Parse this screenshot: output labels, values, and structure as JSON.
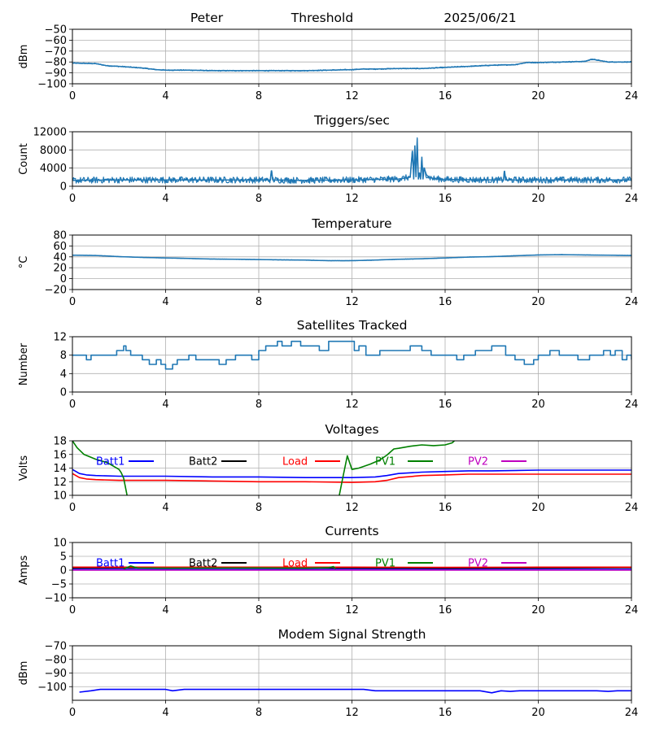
{
  "header": {
    "left": "Peter",
    "middle": "Threshold",
    "right": "2025/06/21"
  },
  "chart_data": [
    {
      "type": "line",
      "title": "",
      "ylabel": "dBm",
      "xlim": [
        0,
        24
      ],
      "ylim": [
        -100,
        -50
      ],
      "xticks": [
        0,
        4,
        8,
        12,
        16,
        20,
        24
      ],
      "yticks": [
        -100,
        -90,
        -80,
        -70,
        -60,
        -50
      ],
      "grid": true,
      "series": [
        {
          "color": "#1f77b4",
          "noise": 0.5,
          "x": [
            0,
            1,
            1.5,
            2,
            3,
            3.6,
            4,
            5,
            6,
            8,
            10,
            11,
            12,
            12.5,
            13,
            14,
            15,
            16,
            17,
            18,
            19,
            19.5,
            20,
            21,
            22,
            22.3,
            23,
            24
          ],
          "y": [
            -81,
            -81.5,
            -83.5,
            -84,
            -85.5,
            -87,
            -87.5,
            -87.5,
            -88,
            -88,
            -88,
            -87.5,
            -87,
            -86.5,
            -86.5,
            -86,
            -86,
            -85,
            -84,
            -83,
            -82.5,
            -80.5,
            -80.5,
            -80,
            -79.5,
            -77.5,
            -80,
            -80
          ]
        }
      ]
    },
    {
      "type": "line",
      "title": "Triggers/sec",
      "ylabel": "Count",
      "xlim": [
        0,
        24
      ],
      "ylim": [
        0,
        12000
      ],
      "xticks": [
        0,
        4,
        8,
        12,
        16,
        20,
        24
      ],
      "yticks": [
        0,
        4000,
        8000,
        12000
      ],
      "grid": true,
      "series": [
        {
          "color": "#1f77b4",
          "noise": 700,
          "x": [
            0,
            2,
            4,
            6,
            8,
            8.5,
            8.55,
            8.6,
            10,
            12,
            13,
            14,
            14.5,
            14.6,
            14.65,
            14.7,
            14.75,
            14.8,
            14.85,
            14.9,
            14.95,
            15,
            15.05,
            15.1,
            15.2,
            15.3,
            15.5,
            16,
            18,
            18.5,
            18.55,
            18.6,
            20,
            22,
            24
          ],
          "y": [
            1300,
            1400,
            1400,
            1400,
            1400,
            1400,
            3500,
            1400,
            1300,
            1400,
            1500,
            1600,
            2000,
            7800,
            1500,
            9000,
            2000,
            10500,
            1500,
            3000,
            1500,
            6500,
            1500,
            4000,
            2500,
            2000,
            1700,
            1500,
            1400,
            1400,
            3400,
            1400,
            1400,
            1400,
            1400
          ]
        }
      ]
    },
    {
      "type": "line",
      "title": "Temperature",
      "ylabel": "°C",
      "xlim": [
        0,
        24
      ],
      "ylim": [
        -20,
        80
      ],
      "xticks": [
        0,
        4,
        8,
        12,
        16,
        20,
        24
      ],
      "yticks": [
        -20,
        0,
        20,
        40,
        60,
        80
      ],
      "grid": true,
      "series": [
        {
          "color": "#1f77b4",
          "noise": 0.3,
          "x": [
            0,
            1,
            2,
            3,
            4,
            5,
            6,
            7,
            8,
            9,
            10,
            11,
            12,
            13,
            14,
            15,
            16,
            17,
            18,
            19,
            20,
            21,
            22,
            23,
            24
          ],
          "y": [
            43,
            42.5,
            40.5,
            39,
            38,
            37,
            36,
            35.5,
            35,
            34.5,
            34,
            33,
            33,
            34,
            35.5,
            36.5,
            38,
            39.5,
            40.5,
            42,
            43.5,
            44,
            43.5,
            43,
            42.5
          ]
        }
      ]
    },
    {
      "type": "line",
      "title": "Satellites Tracked",
      "ylabel": "Number",
      "xlim": [
        0,
        24
      ],
      "ylim": [
        0,
        12
      ],
      "xticks": [
        0,
        4,
        8,
        12,
        16,
        20,
        24
      ],
      "yticks": [
        0,
        4,
        8,
        12
      ],
      "grid": true,
      "step": true,
      "series": [
        {
          "color": "#1f77b4",
          "x": [
            0,
            0.6,
            0.8,
            1.2,
            1.9,
            2.2,
            2.3,
            2.5,
            3,
            3.3,
            3.6,
            3.8,
            4.0,
            4.3,
            4.5,
            4.7,
            5,
            5.3,
            5.6,
            6,
            6.3,
            6.6,
            6.8,
            7,
            7.5,
            7.7,
            8,
            8.3,
            8.6,
            8.8,
            9,
            9.4,
            9.8,
            10.3,
            10.6,
            11,
            11.4,
            11.8,
            12.1,
            12.3,
            12.6,
            13.2,
            13.5,
            13.8,
            14.5,
            15,
            15.4,
            15.8,
            16.2,
            16.5,
            16.8,
            17.3,
            18,
            18.3,
            18.6,
            19,
            19.4,
            19.8,
            20,
            20.5,
            20.9,
            21.3,
            21.7,
            22.2,
            22.5,
            22.8,
            23.1,
            23.3,
            23.6,
            23.8,
            24
          ],
          "y": [
            8,
            7,
            8,
            8,
            9,
            10,
            9,
            8,
            7,
            6,
            7,
            6,
            5,
            6,
            7,
            7,
            8,
            7,
            7,
            7,
            6,
            7,
            7,
            8,
            8,
            7,
            9,
            10,
            10,
            11,
            10,
            11,
            10,
            10,
            9,
            11,
            11,
            11,
            9,
            10,
            8,
            9,
            9,
            9,
            10,
            9,
            8,
            8,
            8,
            7,
            8,
            9,
            10,
            10,
            8,
            7,
            6,
            7,
            8,
            9,
            8,
            8,
            7,
            8,
            8,
            9,
            8,
            9,
            7,
            8,
            7
          ]
        }
      ]
    },
    {
      "type": "line",
      "title": "Voltages",
      "ylabel": "Volts",
      "xlim": [
        0,
        24
      ],
      "ylim": [
        10,
        18
      ],
      "xticks": [
        0,
        4,
        8,
        12,
        16,
        20,
        24
      ],
      "yticks": [
        10,
        12,
        14,
        16,
        18
      ],
      "grid": true,
      "legend": [
        "Batt1",
        "Batt2",
        "Load",
        "PV1",
        "PV2"
      ],
      "legend_colors": [
        "#0000ff",
        "#000000",
        "#ff0000",
        "#008000",
        "#bf00bf"
      ],
      "series": [
        {
          "name": "Batt1",
          "color": "#0000ff",
          "x": [
            0,
            0.3,
            0.6,
            1,
            2,
            3,
            4,
            6,
            8,
            10,
            12,
            13,
            13.5,
            14,
            15,
            16,
            17,
            18,
            20,
            22,
            24
          ],
          "y": [
            13.8,
            13.2,
            13.0,
            12.9,
            12.8,
            12.8,
            12.8,
            12.7,
            12.7,
            12.6,
            12.6,
            12.7,
            12.9,
            13.2,
            13.4,
            13.5,
            13.6,
            13.6,
            13.7,
            13.7,
            13.7
          ]
        },
        {
          "name": "Load",
          "color": "#ff0000",
          "x": [
            0,
            0.3,
            0.6,
            1,
            2,
            4,
            6,
            8,
            10,
            12,
            13,
            13.5,
            14,
            15,
            16,
            17,
            18,
            20,
            22,
            24
          ],
          "y": [
            13.2,
            12.6,
            12.4,
            12.3,
            12.2,
            12.2,
            12.1,
            12.0,
            12.0,
            11.9,
            12.0,
            12.2,
            12.6,
            12.9,
            13.0,
            13.1,
            13.1,
            13.1,
            13.1,
            13.1
          ]
        },
        {
          "name": "PV1",
          "color": "#008000",
          "x": [
            0,
            0.2,
            0.5,
            1,
            1.5,
            2.0,
            2.1,
            2.2,
            2.35,
            11.45,
            11.6,
            11.8,
            12.0,
            12.3,
            12.8,
            13.2,
            13.5,
            13.8,
            14,
            14.5,
            15,
            15.5,
            16,
            16.3,
            16.4
          ],
          "y": [
            18,
            17,
            16,
            15.3,
            14.8,
            13.8,
            13.3,
            12.5,
            9.9,
            9.9,
            12.5,
            15.8,
            13.8,
            14.0,
            14.6,
            15.2,
            15.9,
            16.8,
            16.9,
            17.2,
            17.4,
            17.3,
            17.4,
            17.7,
            18
          ]
        }
      ]
    },
    {
      "type": "line",
      "title": "Currents",
      "ylabel": "Amps",
      "xlim": [
        0,
        24
      ],
      "ylim": [
        -10,
        10
      ],
      "xticks": [
        0,
        4,
        8,
        12,
        16,
        20,
        24
      ],
      "yticks": [
        -10,
        -5,
        0,
        5,
        10
      ],
      "grid": true,
      "legend": [
        "Batt1",
        "Batt2",
        "Load",
        "PV1",
        "PV2"
      ],
      "legend_colors": [
        "#0000ff",
        "#000000",
        "#ff0000",
        "#008000",
        "#bf00bf"
      ],
      "series": [
        {
          "name": "Batt1",
          "color": "#0000ff",
          "x": [
            0,
            24
          ],
          "y": [
            0.3,
            0.3
          ]
        },
        {
          "name": "Batt2",
          "color": "#000000",
          "x": [
            0,
            4,
            8,
            12,
            16,
            20,
            24
          ],
          "y": [
            0.8,
            0.9,
            0.8,
            0.8,
            0.7,
            0.8,
            0.9
          ]
        },
        {
          "name": "Load",
          "color": "#ff0000",
          "x": [
            0,
            4,
            8,
            12,
            16,
            20,
            24
          ],
          "y": [
            1.1,
            1.1,
            1.1,
            1.1,
            1.0,
            1.1,
            1.1
          ]
        },
        {
          "name": "PV1",
          "color": "#008000",
          "x": [
            2.2,
            2.5,
            2.8,
            4,
            8,
            10,
            11,
            11.2,
            11.3
          ],
          "y": [
            0.4,
            1.5,
            0.8,
            0.7,
            0.8,
            0.7,
            0.9,
            1.3,
            0.4
          ]
        },
        {
          "name": "PV2",
          "color": "#bf00bf",
          "x": [
            0,
            24
          ],
          "y": [
            0,
            0
          ]
        }
      ]
    },
    {
      "type": "line",
      "title": "Modem Signal Strength",
      "ylabel": "dBm",
      "xlim": [
        0,
        24
      ],
      "ylim": [
        -110,
        -70
      ],
      "xticks": [
        0,
        4,
        8,
        12,
        16,
        20,
        24
      ],
      "yticks": [
        -100,
        -90,
        -80,
        -70
      ],
      "grid": true,
      "series": [
        {
          "color": "#0000ff",
          "x": [
            0.3,
            0.8,
            1.2,
            2,
            3,
            4,
            4.3,
            4.8,
            5.5,
            7,
            8,
            9,
            10,
            11,
            12,
            12.5,
            13,
            14,
            15,
            16,
            17,
            17.5,
            18,
            18.4,
            18.8,
            19.2,
            19.6,
            20,
            21,
            22,
            22.5,
            23,
            23.4,
            24
          ],
          "y": [
            -104,
            -103,
            -102,
            -102,
            -102,
            -102,
            -103,
            -102,
            -102,
            -102,
            -102,
            -102,
            -102,
            -102,
            -102,
            -102,
            -103,
            -103,
            -103,
            -103,
            -103,
            -103,
            -104.5,
            -103,
            -103.5,
            -103,
            -103,
            -103,
            -103,
            -103,
            -103,
            -103.5,
            -103,
            -103
          ]
        }
      ]
    }
  ]
}
